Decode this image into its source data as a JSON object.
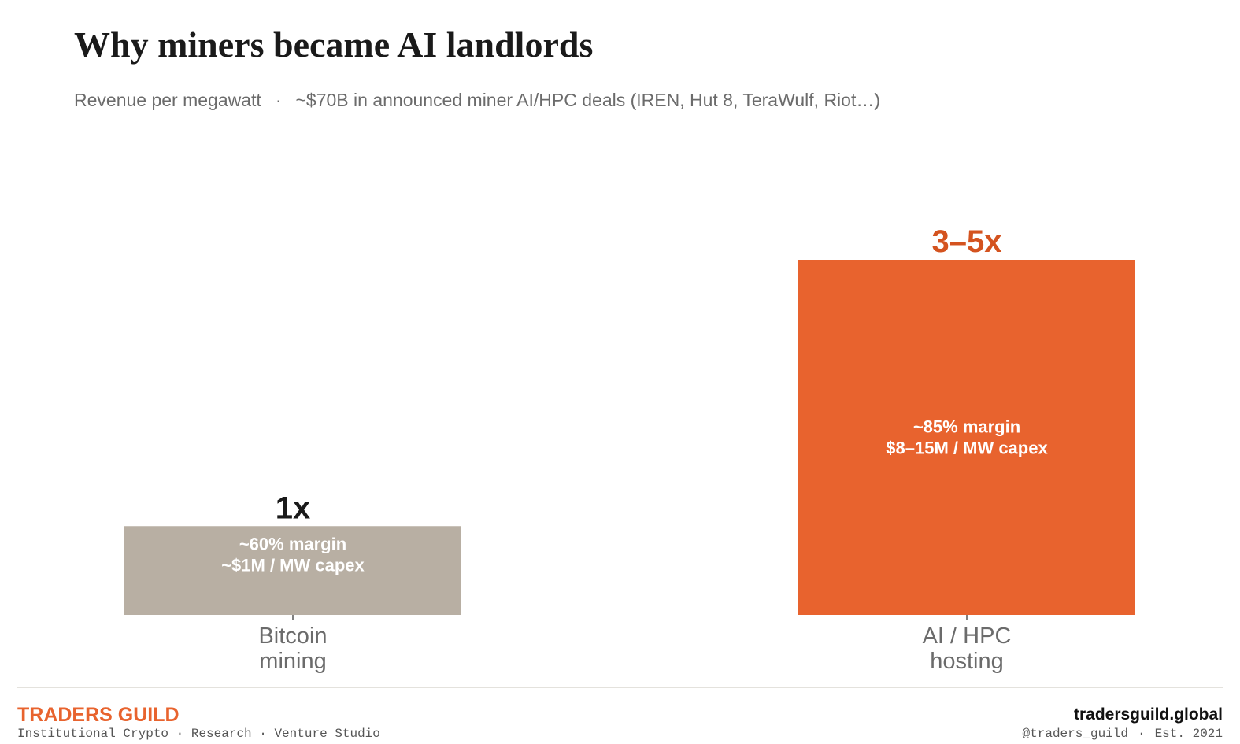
{
  "header": {
    "title": "Why miners became AI landlords",
    "subtitle_left": "Revenue per megawatt",
    "subtitle_sep": "·",
    "subtitle_right": "~$70B in announced miner AI/HPC deals (IREN, Hut 8, TeraWulf, Riot…)"
  },
  "chart_data": {
    "type": "bar",
    "title": "Why miners became AI landlords",
    "subtitle": "Revenue per megawatt",
    "categories": [
      {
        "line1": "Bitcoin",
        "line2": "mining"
      },
      {
        "line1": "AI / HPC",
        "line2": "hosting"
      }
    ],
    "values": [
      1,
      4
    ],
    "value_labels": [
      "1x",
      "3–5x"
    ],
    "bar_notes": [
      {
        "line1": "~60% margin",
        "line2": "~$1M / MW capex"
      },
      {
        "line1": "~85% margin",
        "line2": "$8–15M / MW capex"
      }
    ],
    "colors": [
      "#b8afa3",
      "#e8632e"
    ],
    "value_label_colors": [
      "#1a1a1a",
      "#d4531f"
    ],
    "ylim": [
      0,
      4
    ],
    "grid": false,
    "legend": "none",
    "xlabel": "",
    "ylabel": ""
  },
  "footer": {
    "brand": "TRADERS GUILD",
    "tagline": "Institutional Crypto · Research · Venture Studio",
    "site": "tradersguild.global",
    "handle": "@traders_guild",
    "sep": "·",
    "est": "Est. 2021"
  }
}
